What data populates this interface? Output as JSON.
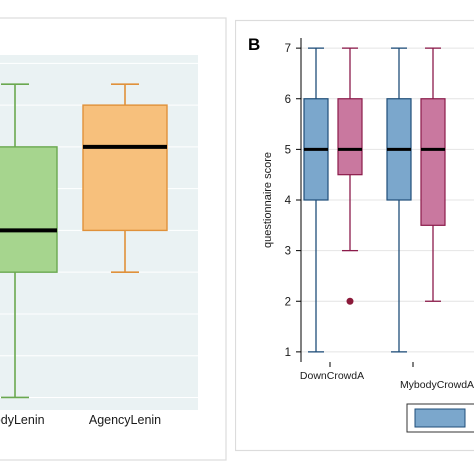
{
  "chart_data": [
    {
      "panel_letter": "",
      "type": "box",
      "categories": [
        "BodyLenin",
        "AgencyLenin"
      ],
      "boxes": [
        {
          "category": "BodyLenin",
          "whisker_low": 1,
          "q1": 4,
          "median": 5,
          "q3": 7,
          "whisker_high": 8.5,
          "color": "#a6d58e",
          "stroke": "#6aa84f"
        },
        {
          "category": "AgencyLenin",
          "whisker_low": 4,
          "q1": 5,
          "median": 7,
          "q3": 8,
          "whisker_high": 8.5,
          "color": "#f7c07c",
          "stroke": "#e0913a"
        }
      ],
      "ylim": [
        0.7,
        9.2
      ],
      "grid": "horizontal",
      "title": "",
      "xlabel": "",
      "ylabel": ""
    },
    {
      "panel_letter": "B",
      "type": "box",
      "categories": [
        "DownCrowdA",
        "MybodyCrowdA"
      ],
      "ylabel": "questionnaire score",
      "yticks": [
        1,
        2,
        3,
        4,
        5,
        6,
        7
      ],
      "ylim": [
        0.8,
        7.2
      ],
      "series_colors": [
        "#7ba7cc",
        "#c9789f"
      ],
      "series_strokes": [
        "#1f4e79",
        "#8b1a4a"
      ],
      "groups": [
        {
          "category": "DownCrowdA",
          "boxes": [
            {
              "whisker_low": 1,
              "q1": 4,
              "median": 5,
              "q3": 6,
              "whisker_high": 7,
              "outliers": []
            },
            {
              "whisker_low": 3,
              "q1": 4.5,
              "median": 5,
              "q3": 6,
              "whisker_high": 7,
              "outliers": [
                2
              ]
            }
          ]
        },
        {
          "category": "MybodyCrowdA",
          "boxes": [
            {
              "whisker_low": 1,
              "q1": 4,
              "median": 5,
              "q3": 6,
              "whisker_high": 7,
              "outliers": []
            },
            {
              "whisker_low": 2,
              "q1": 3.5,
              "median": 5,
              "q3": 6,
              "whisker_high": 7,
              "outliers": []
            }
          ]
        }
      ],
      "legend_placement": "bottom",
      "grid": "horizontal",
      "title": "",
      "xlabel": ""
    }
  ]
}
